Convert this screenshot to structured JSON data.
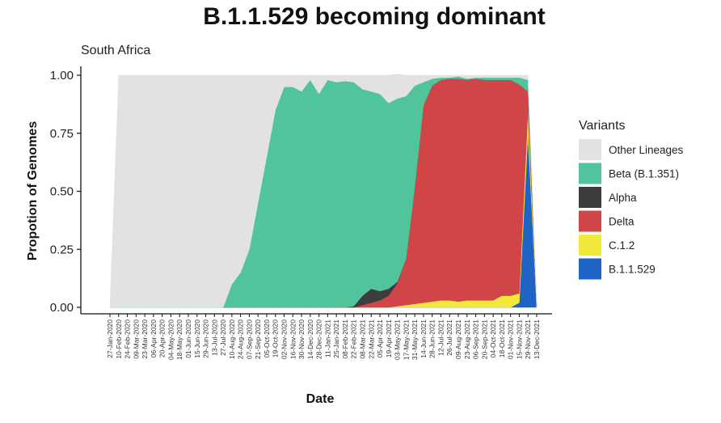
{
  "chart_data": {
    "type": "area",
    "title": "B.1.1.529 becoming dominant",
    "subtitle": "South Africa",
    "xlabel": "Date",
    "ylabel": "Propotion of Genomes",
    "ylim": [
      0,
      1
    ],
    "yticks": [
      "0.00",
      "0.25",
      "0.50",
      "0.75",
      "1.00"
    ],
    "legend_title": "Variants",
    "legend_position": "right",
    "x_dates": [
      "27-Jan-2020",
      "10-Feb-2020",
      "24-Feb-2020",
      "09-Mar-2020",
      "23-Mar-2020",
      "06-Apr-2020",
      "20-Apr-2020",
      "04-May-2020",
      "18-May-2020",
      "01-Jun-2020",
      "15-Jun-2020",
      "29-Jun-2020",
      "13-Jul-2020",
      "27-Jul-2020",
      "10-Aug-2020",
      "24-Aug-2020",
      "07-Sep-2020",
      "21-Sep-2020",
      "05-Oct-2020",
      "19-Oct-2020",
      "02-Nov-2020",
      "16-Nov-2020",
      "30-Nov-2020",
      "14-Dec-2020",
      "28-Dec-2020",
      "11-Jan-2021",
      "25-Jan-2021",
      "08-Feb-2021",
      "22-Feb-2021",
      "08-Mar-2021",
      "22-Mar-2021",
      "05-Apr-2021",
      "19-Apr-2021",
      "03-May-2021",
      "17-May-2021",
      "31-May-2021",
      "14-Jun-2021",
      "28-Jun-2021",
      "12-Jul-2021",
      "26-Jul-2021",
      "09-Aug-2021",
      "23-Aug-2021",
      "06-Sep-2021",
      "20-Sep-2021",
      "04-Oct-2021",
      "18-Oct-2021",
      "01-Nov-2021",
      "15-Nov-2021",
      "29-Nov-2021",
      "13-Dec-2021"
    ],
    "series": [
      {
        "name": "B.1.1.529",
        "color": "#1f63c4",
        "values": [
          0,
          0,
          0,
          0,
          0,
          0,
          0,
          0,
          0,
          0,
          0,
          0,
          0,
          0,
          0,
          0,
          0,
          0,
          0,
          0,
          0,
          0,
          0,
          0,
          0,
          0,
          0,
          0,
          0,
          0,
          0,
          0,
          0,
          0,
          0,
          0,
          0,
          0,
          0,
          0,
          0,
          0,
          0,
          0,
          0,
          0,
          0,
          0.02,
          0.75,
          0
        ]
      },
      {
        "name": "C.1.2",
        "color": "#f2e83c",
        "values": [
          0,
          0,
          0,
          0,
          0,
          0,
          0,
          0,
          0,
          0,
          0,
          0,
          0,
          0,
          0,
          0,
          0,
          0,
          0,
          0,
          0,
          0,
          0,
          0,
          0,
          0,
          0,
          0,
          0,
          0,
          0,
          0,
          0,
          0.005,
          0.01,
          0.015,
          0.02,
          0.025,
          0.03,
          0.03,
          0.025,
          0.03,
          0.03,
          0.03,
          0.03,
          0.05,
          0.05,
          0.04,
          0.1,
          0
        ]
      },
      {
        "name": "Delta",
        "color": "#d04548",
        "values": [
          0,
          0,
          0,
          0,
          0,
          0,
          0,
          0,
          0,
          0,
          0,
          0,
          0,
          0,
          0,
          0,
          0,
          0,
          0,
          0,
          0,
          0,
          0,
          0,
          0,
          0,
          0,
          0,
          0,
          0.01,
          0.02,
          0.03,
          0.05,
          0.1,
          0.2,
          0.5,
          0.85,
          0.93,
          0.95,
          0.955,
          0.96,
          0.95,
          0.955,
          0.95,
          0.95,
          0.93,
          0.93,
          0.9,
          0.08,
          0
        ]
      },
      {
        "name": "Alpha",
        "color": "#3d3d3d",
        "values": [
          0,
          0,
          0,
          0,
          0,
          0,
          0,
          0,
          0,
          0,
          0,
          0,
          0,
          0,
          0,
          0,
          0,
          0,
          0,
          0,
          0,
          0,
          0,
          0,
          0,
          0,
          0,
          0,
          0.005,
          0.04,
          0.06,
          0.04,
          0.03,
          0.005,
          0,
          0,
          0,
          0,
          0,
          0,
          0,
          0,
          0,
          0,
          0,
          0,
          0,
          0,
          0,
          0
        ]
      },
      {
        "name": "Beta (B.1.351)",
        "color": "#52c49c",
        "values": [
          0,
          0,
          0,
          0,
          0,
          0,
          0,
          0,
          0,
          0,
          0,
          0,
          0,
          0,
          0.1,
          0.15,
          0.25,
          0.45,
          0.65,
          0.85,
          0.95,
          0.95,
          0.93,
          0.98,
          0.92,
          0.98,
          0.97,
          0.975,
          0.965,
          0.89,
          0.85,
          0.85,
          0.8,
          0.79,
          0.7,
          0.44,
          0.1,
          0.03,
          0.01,
          0.005,
          0.01,
          0.005,
          0.005,
          0.01,
          0.01,
          0.01,
          0.01,
          0.03,
          0.05,
          0
        ]
      },
      {
        "name": "Other Lineages",
        "color": "#e2e2e2",
        "values": [
          0,
          1,
          1,
          1,
          1,
          1,
          1,
          1,
          1,
          1,
          1,
          1,
          1,
          1,
          0.9,
          0.85,
          0.75,
          0.55,
          0.35,
          0.15,
          0.05,
          0.05,
          0.07,
          0.02,
          0.08,
          0.02,
          0.03,
          0.025,
          0.03,
          0.06,
          0.07,
          0.08,
          0.12,
          0.105,
          0.09,
          0.045,
          0.03,
          0.015,
          0.01,
          0.01,
          0.005,
          0.015,
          0.01,
          0.01,
          0.01,
          0.01,
          0.01,
          0.01,
          0.02,
          0
        ]
      }
    ],
    "legend_order": [
      "Other Lineages",
      "Beta (B.1.351)",
      "Alpha",
      "Delta",
      "C.1.2",
      "B.1.1.529"
    ]
  }
}
